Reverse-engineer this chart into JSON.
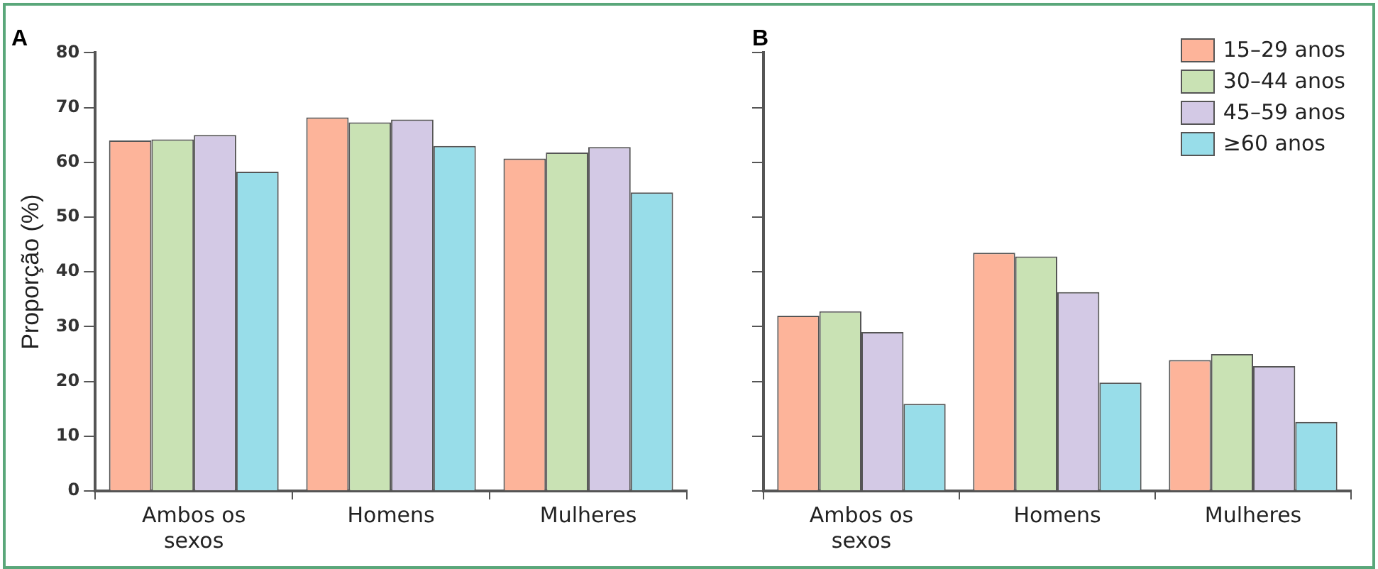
{
  "chart_data": [
    {
      "type": "bar",
      "title": "A",
      "ylabel": "Proporção (%)",
      "categories": [
        "Ambos os sexos",
        "Homens",
        "Mulheres"
      ],
      "series": [
        {
          "color": "#fdb49a",
          "values": [
            64,
            68.2,
            60.7
          ]
        },
        {
          "color": "#c9e2b4",
          "values": [
            64.2,
            67.3,
            61.8
          ]
        },
        {
          "color": "#d3c9e5",
          "values": [
            65,
            67.8,
            62.8
          ]
        },
        {
          "color": "#98dde9",
          "values": [
            58.3,
            63,
            54.5
          ]
        }
      ],
      "ylim": [
        0,
        80
      ],
      "yticks": [
        0,
        10,
        20,
        30,
        40,
        50,
        60,
        70,
        80
      ],
      "grid": false,
      "legend": false
    },
    {
      "type": "bar",
      "title": "B",
      "categories": [
        "Ambos os sexos",
        "Homens",
        "Mulheres"
      ],
      "series": [
        {
          "name": "15–29 anos",
          "color": "#fdb49a",
          "values": [
            32,
            43.5,
            23.9
          ]
        },
        {
          "name": "30–44 anos",
          "color": "#c9e2b4",
          "values": [
            32.8,
            42.8,
            25
          ]
        },
        {
          "name": "45–59 anos",
          "color": "#d3c9e5",
          "values": [
            29,
            36.3,
            22.8
          ]
        },
        {
          "name": "≥60 anos",
          "color": "#98dde9",
          "values": [
            15.9,
            19.8,
            12.6
          ]
        }
      ],
      "ylim": [
        0,
        80
      ],
      "yticks": [
        {
          "value": 0,
          "label": null
        },
        {
          "value": 10,
          "label": null
        },
        {
          "value": 20,
          "label": null
        },
        {
          "value": 30,
          "label": null
        },
        {
          "value": 40,
          "label": null
        },
        {
          "value": 50,
          "label": null
        },
        {
          "value": 60,
          "label": null
        },
        {
          "value": 70,
          "label": null
        },
        {
          "value": 80,
          "label": null
        }
      ],
      "grid": false,
      "legend": "top right",
      "tick_labels": "x"
    }
  ]
}
